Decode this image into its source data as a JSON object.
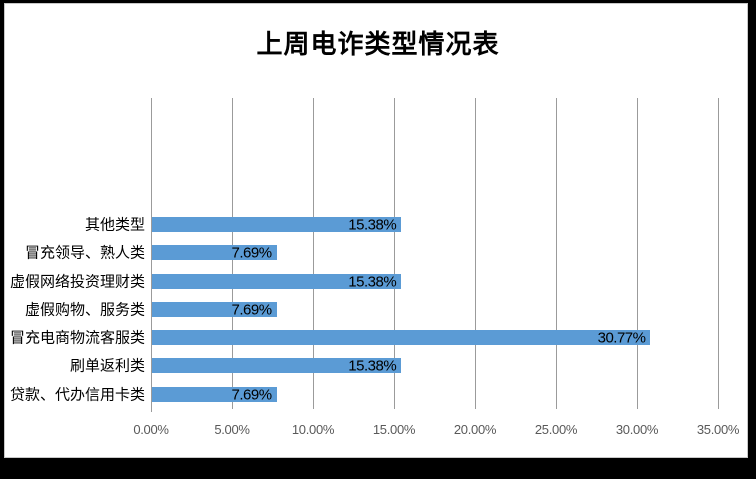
{
  "chart_data": {
    "type": "bar",
    "orientation": "horizontal",
    "title": "上周电诈类型情况表",
    "categories": [
      "其他类型",
      "冒充领导、熟人类",
      "虚假网络投资理财类",
      "虚假购物、服务类",
      "冒充电商物流客服类",
      "刷单返利类",
      "贷款、代办信用卡类"
    ],
    "values": [
      15.38,
      7.69,
      15.38,
      7.69,
      30.77,
      15.38,
      7.69
    ],
    "value_labels": [
      "15.38%",
      "7.69%",
      "15.38%",
      "7.69%",
      "30.77%",
      "15.38%",
      "7.69%"
    ],
    "x_ticks": [
      {
        "value": 0,
        "label": "0.00%"
      },
      {
        "value": 5,
        "label": "5.00%"
      },
      {
        "value": 10,
        "label": "10.00%"
      },
      {
        "value": 15,
        "label": "15.00%"
      },
      {
        "value": 20,
        "label": "20.00%"
      },
      {
        "value": 25,
        "label": "25.00%"
      },
      {
        "value": 30,
        "label": "30.00%"
      },
      {
        "value": 35,
        "label": "35.00%"
      }
    ],
    "xlim": [
      0,
      35
    ],
    "grid": true,
    "legend": "none",
    "data_label_position": "inside-end",
    "bar_color": "#5b9bd5",
    "value_label_color": "#000000",
    "tick_label_color": "#595959",
    "gridline_color": "#9b9b9b",
    "plot_background": "#ffffff",
    "frame_color": "#000000"
  }
}
